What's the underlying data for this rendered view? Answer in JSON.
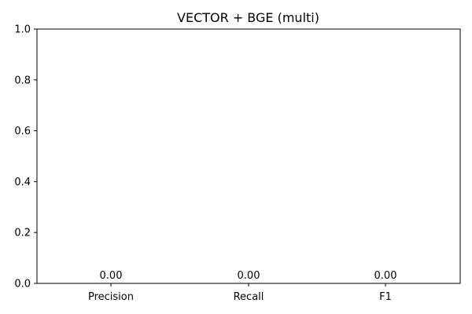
{
  "chart_data": {
    "type": "bar",
    "title": "VECTOR + BGE (multi)",
    "xlabel": "",
    "ylabel": "",
    "categories": [
      "Precision",
      "Recall",
      "F1"
    ],
    "values": [
      0.0,
      0.0,
      0.0
    ],
    "data_labels": [
      "0.00",
      "0.00",
      "0.00"
    ],
    "ylim": [
      0,
      1.0
    ],
    "yticks": [
      0.0,
      0.2,
      0.4,
      0.6,
      0.8,
      1.0
    ],
    "ytick_labels": [
      "0.0",
      "0.2",
      "0.4",
      "0.6",
      "0.8",
      "1.0"
    ],
    "grid": false,
    "bar_color": "#1f77b4"
  }
}
